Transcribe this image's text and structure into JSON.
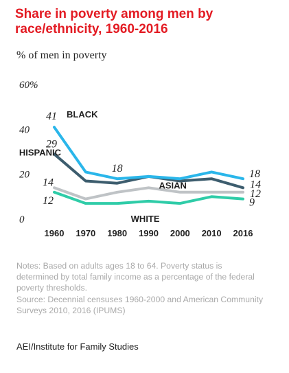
{
  "title": "Share in poverty among men by race/ethnicity, 1960-2016",
  "subtitle": "% of men in poverty",
  "notes": "Notes: Based on adults ages 18 to 64. Poverty status is determined by total family income as a percentage of the federal poverty thresholds.",
  "source": "Source: Decennial censuses 1960-2000 and American Community Surveys 2010, 2016 (IPUMS)",
  "org": "AEI/Institute for Family Studies",
  "chart_data": {
    "type": "line",
    "title": "",
    "xlabel": "",
    "ylabel": "",
    "x": [
      "1960",
      "1970",
      "1980",
      "1990",
      "2000",
      "2010",
      "2016"
    ],
    "yticks": [
      "0",
      "20",
      "40",
      "60%"
    ],
    "ylim": [
      0,
      60
    ],
    "grid": false,
    "series": [
      {
        "name": "BLACK",
        "color": "#2ab6ea",
        "values": [
          41,
          21,
          18,
          19,
          18,
          21,
          18
        ]
      },
      {
        "name": "HISPANIC",
        "color": "#3d5d6e",
        "values": [
          29,
          17,
          16,
          19,
          17,
          18,
          14
        ]
      },
      {
        "name": "ASIAN",
        "color": "#bfc3c6",
        "values": [
          14,
          9,
          12,
          14,
          12,
          12,
          12
        ]
      },
      {
        "name": "WHITE",
        "color": "#2fcca8",
        "values": [
          12,
          7,
          7,
          8,
          7,
          10,
          9
        ]
      }
    ],
    "data_labels": [
      {
        "series": "BLACK",
        "x": "1960",
        "text": "41"
      },
      {
        "series": "BLACK",
        "x": "1980",
        "text": "18"
      },
      {
        "series": "BLACK",
        "x": "2016",
        "text": "18"
      },
      {
        "series": "HISPANIC",
        "x": "1960",
        "text": "29"
      },
      {
        "series": "HISPANIC",
        "x": "2016",
        "text": "14"
      },
      {
        "series": "ASIAN",
        "x": "1960",
        "text": "14"
      },
      {
        "series": "ASIAN",
        "x": "2016",
        "text": "12"
      },
      {
        "series": "WHITE",
        "x": "1960",
        "text": "12"
      },
      {
        "series": "WHITE",
        "x": "2016",
        "text": "9"
      }
    ]
  }
}
